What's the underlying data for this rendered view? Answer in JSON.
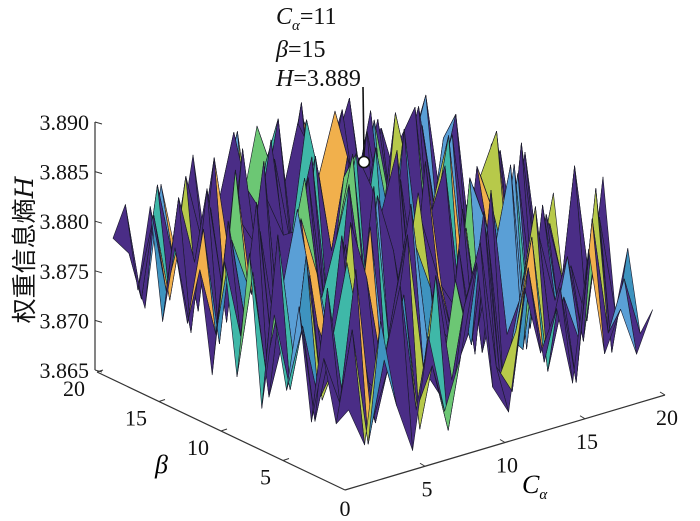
{
  "chart_data": {
    "type": "surface",
    "xlabel": "Cα",
    "xlabel_main": "C",
    "xlabel_sub": "α",
    "ylabel": "β",
    "zlabel": "权重信息熵H",
    "zlabel_text": "权重信息熵",
    "zlabel_var": "H",
    "xlim": [
      0,
      20
    ],
    "ylim": [
      0,
      20
    ],
    "zlim": [
      3.865,
      3.89
    ],
    "x_ticks": [
      "5",
      "10",
      "15",
      "20"
    ],
    "y_ticks": [
      "5",
      "10",
      "15",
      "20"
    ],
    "origin_tick": "0",
    "z_ticks": [
      "3.865",
      "3.870",
      "3.875",
      "3.880",
      "3.885",
      "3.890"
    ],
    "grid": false,
    "colors": {
      "base": "#4a2d86",
      "others": [
        "#5a9fd6",
        "#3fb8a8",
        "#6cc774",
        "#b7c94a",
        "#f1b04c",
        "#3e93bf"
      ],
      "edge": "#1a1a2a"
    },
    "x": [
      1,
      2,
      3,
      4,
      5,
      6,
      7,
      8,
      9,
      10,
      11,
      12,
      13,
      14,
      15,
      16,
      17,
      18,
      19,
      20
    ],
    "y": [
      1,
      2,
      3,
      4,
      5,
      6,
      7,
      8,
      9,
      10,
      11,
      12,
      13,
      14,
      15,
      16,
      17,
      18,
      19,
      20
    ],
    "z": [
      [
        3.872,
        3.868,
        3.88,
        3.871,
        3.866,
        3.877,
        3.869,
        3.874,
        3.883,
        3.87,
        3.867,
        3.879,
        3.872,
        3.876,
        3.868,
        3.881,
        3.87,
        3.874,
        3.869,
        3.873
      ],
      [
        3.87,
        3.879,
        3.867,
        3.875,
        3.882,
        3.869,
        3.873,
        3.866,
        3.878,
        3.884,
        3.871,
        3.868,
        3.88,
        3.87,
        3.877,
        3.867,
        3.883,
        3.871,
        3.876,
        3.87
      ],
      [
        3.876,
        3.871,
        3.884,
        3.868,
        3.873,
        3.88,
        3.866,
        3.881,
        3.87,
        3.874,
        3.886,
        3.869,
        3.873,
        3.882,
        3.868,
        3.875,
        3.87,
        3.885,
        3.868,
        3.878
      ],
      [
        3.869,
        3.882,
        3.87,
        3.877,
        3.867,
        3.874,
        3.885,
        3.871,
        3.868,
        3.879,
        3.872,
        3.883,
        3.867,
        3.875,
        3.884,
        3.87,
        3.878,
        3.869,
        3.881,
        3.871
      ],
      [
        3.88,
        3.868,
        3.875,
        3.883,
        3.871,
        3.869,
        3.878,
        3.887,
        3.873,
        3.866,
        3.881,
        3.87,
        3.886,
        3.871,
        3.869,
        3.88,
        3.873,
        3.876,
        3.87,
        3.884
      ],
      [
        3.871,
        3.877,
        3.869,
        3.872,
        3.886,
        3.88,
        3.87,
        3.874,
        3.882,
        3.877,
        3.868,
        3.884,
        3.872,
        3.879,
        3.887,
        3.868,
        3.882,
        3.871,
        3.885,
        3.872
      ],
      [
        3.878,
        3.87,
        3.883,
        3.868,
        3.874,
        3.871,
        3.884,
        3.869,
        3.876,
        3.886,
        3.873,
        3.87,
        3.881,
        3.868,
        3.874,
        3.886,
        3.869,
        3.88,
        3.873,
        3.877
      ],
      [
        3.868,
        3.885,
        3.872,
        3.88,
        3.869,
        3.883,
        3.873,
        3.887,
        3.87,
        3.871,
        3.882,
        3.876,
        3.869,
        3.885,
        3.88,
        3.872,
        3.884,
        3.87,
        3.878,
        3.869
      ],
      [
        3.883,
        3.871,
        3.878,
        3.886,
        3.875,
        3.87,
        3.881,
        3.872,
        3.885,
        3.879,
        3.869,
        3.887,
        3.874,
        3.871,
        3.883,
        3.877,
        3.87,
        3.886,
        3.872,
        3.88
      ],
      [
        3.87,
        3.88,
        3.867,
        3.873,
        3.884,
        3.878,
        3.869,
        3.886,
        3.874,
        3.882,
        3.888,
        3.871,
        3.88,
        3.885,
        3.87,
        3.884,
        3.879,
        3.872,
        3.884,
        3.871
      ],
      [
        3.881,
        3.873,
        3.886,
        3.87,
        3.879,
        3.887,
        3.874,
        3.88,
        3.888,
        3.871,
        3.877,
        3.884,
        3.872,
        3.878,
        3.887,
        3.871,
        3.882,
        3.886,
        3.87,
        3.879
      ],
      [
        3.869,
        3.884,
        3.874,
        3.882,
        3.871,
        3.876,
        3.886,
        3.873,
        3.879,
        3.887,
        3.883,
        3.87,
        3.888,
        3.874,
        3.881,
        3.886,
        3.873,
        3.878,
        3.883,
        3.872
      ],
      [
        3.879,
        3.872,
        3.881,
        3.876,
        3.888,
        3.87,
        3.88,
        3.887,
        3.871,
        3.884,
        3.874,
        3.886,
        3.877,
        3.883,
        3.871,
        3.88,
        3.887,
        3.872,
        3.88,
        3.869
      ],
      [
        3.873,
        3.882,
        3.87,
        3.887,
        3.874,
        3.883,
        3.879,
        3.872,
        3.886,
        3.876,
        3.885,
        3.879,
        3.871,
        3.888,
        3.878,
        3.873,
        3.884,
        3.879,
        3.871,
        3.882
      ],
      [
        3.88,
        3.871,
        3.885,
        3.874,
        3.881,
        3.878,
        3.888,
        3.874,
        3.88,
        3.883,
        3.889,
        3.873,
        3.886,
        3.877,
        3.884,
        3.887,
        3.871,
        3.883,
        3.876,
        3.874
      ],
      [
        3.872,
        3.884,
        3.877,
        3.882,
        3.87,
        3.887,
        3.873,
        3.885,
        3.876,
        3.888,
        3.874,
        3.881,
        3.879,
        3.887,
        3.872,
        3.88,
        3.886,
        3.875,
        3.881,
        3.87
      ],
      [
        3.883,
        3.874,
        3.88,
        3.871,
        3.886,
        3.875,
        3.882,
        3.879,
        3.888,
        3.873,
        3.884,
        3.878,
        3.887,
        3.874,
        3.885,
        3.876,
        3.88,
        3.883,
        3.872,
        3.879
      ],
      [
        3.874,
        3.881,
        3.872,
        3.884,
        3.877,
        3.88,
        3.887,
        3.872,
        3.883,
        3.879,
        3.886,
        3.874,
        3.882,
        3.88,
        3.877,
        3.884,
        3.872,
        3.879,
        3.885,
        3.873
      ],
      [
        3.882,
        3.872,
        3.883,
        3.875,
        3.881,
        3.873,
        3.879,
        3.886,
        3.874,
        3.882,
        3.877,
        3.887,
        3.873,
        3.881,
        3.886,
        3.874,
        3.882,
        3.876,
        3.88,
        3.877
      ],
      [
        3.878,
        3.876,
        3.87,
        3.882,
        3.874,
        3.884,
        3.872,
        3.88,
        3.877,
        3.885,
        3.873,
        3.879,
        3.884,
        3.876,
        3.88,
        3.873,
        3.881,
        3.878,
        3.874,
        3.868
      ]
    ],
    "annotation": {
      "x": 11,
      "y": 15,
      "z": 3.889,
      "line1_main": "C",
      "line1_sub": "α",
      "line1_value": "=11",
      "line2_var": "β",
      "line2_value": "=15",
      "line3_var": "H",
      "line3_value": "=3.889"
    }
  }
}
